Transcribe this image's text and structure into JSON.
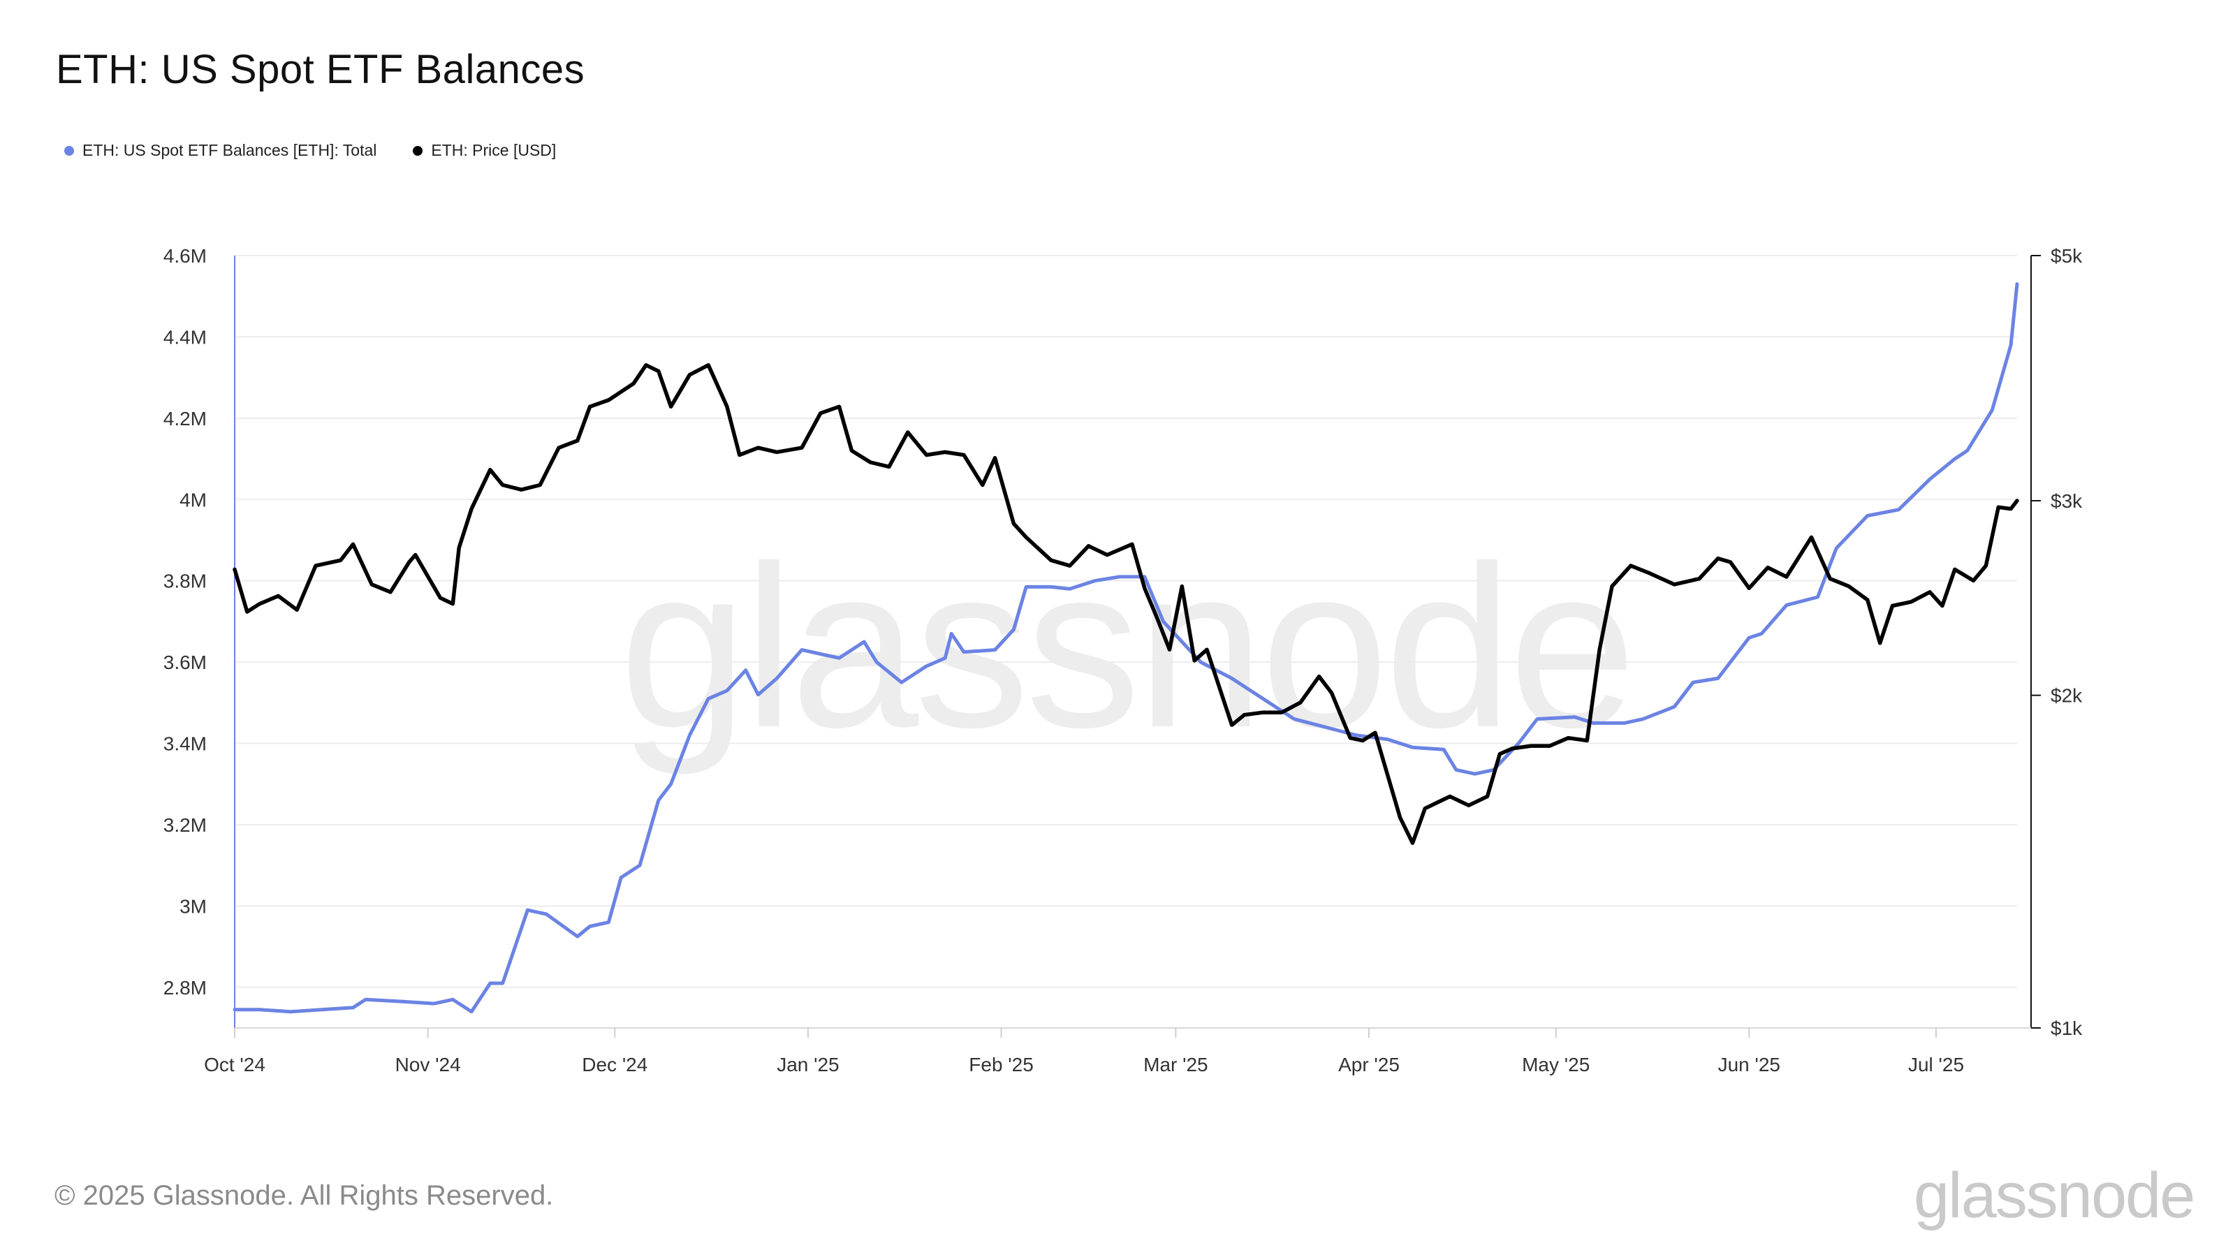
{
  "title": "ETH: US Spot ETF Balances",
  "legend": [
    {
      "label": "ETH: US Spot ETF Balances [ETH]: Total",
      "color": "#6b83e3"
    },
    {
      "label": "ETH: Price [USD]",
      "color": "#000000"
    }
  ],
  "watermark": "glassnode",
  "footer": "© 2025 Glassnode. All Rights Reserved.",
  "logo": "glassnode",
  "chart_data": {
    "type": "line",
    "title": "ETH: US Spot ETF Balances",
    "x_range": [
      "2024-10-01",
      "2025-07-14"
    ],
    "x_ticks": [
      {
        "date": "2024-10-01",
        "label": "Oct '24"
      },
      {
        "date": "2024-11-01",
        "label": "Nov '24"
      },
      {
        "date": "2024-12-01",
        "label": "Dec '24"
      },
      {
        "date": "2025-01-01",
        "label": "Jan '25"
      },
      {
        "date": "2025-02-01",
        "label": "Feb '25"
      },
      {
        "date": "2025-03-01",
        "label": "Mar '25"
      },
      {
        "date": "2025-04-01",
        "label": "Apr '25"
      },
      {
        "date": "2025-05-01",
        "label": "May '25"
      },
      {
        "date": "2025-06-01",
        "label": "Jun '25"
      },
      {
        "date": "2025-07-01",
        "label": "Jul '25"
      }
    ],
    "y_left": {
      "min": 2700000,
      "max": 4600000,
      "scale": "linear",
      "ticks": [
        {
          "value": 2800000,
          "label": "2.8M"
        },
        {
          "value": 3000000,
          "label": "3M"
        },
        {
          "value": 3200000,
          "label": "3.2M"
        },
        {
          "value": 3400000,
          "label": "3.4M"
        },
        {
          "value": 3600000,
          "label": "3.6M"
        },
        {
          "value": 3800000,
          "label": "3.8M"
        },
        {
          "value": 4000000,
          "label": "4M"
        },
        {
          "value": 4200000,
          "label": "4.2M"
        },
        {
          "value": 4400000,
          "label": "4.4M"
        },
        {
          "value": 4600000,
          "label": "4.6M"
        }
      ]
    },
    "y_right": {
      "min": 1000,
      "max": 5000,
      "scale": "log",
      "ticks": [
        {
          "value": 1000,
          "label": "$1k"
        },
        {
          "value": 2000,
          "label": "$2k"
        },
        {
          "value": 3000,
          "label": "$3k"
        },
        {
          "value": 5000,
          "label": "$5k"
        }
      ]
    },
    "grid": true,
    "legend_position": "top-left",
    "series": [
      {
        "name": "ETH: US Spot ETF Balances [ETH]: Total",
        "axis": "left",
        "color": "#6b83e3",
        "points": [
          [
            "2024-10-01",
            2745000
          ],
          [
            "2024-10-05",
            2745000
          ],
          [
            "2024-10-10",
            2740000
          ],
          [
            "2024-10-15",
            2745000
          ],
          [
            "2024-10-20",
            2750000
          ],
          [
            "2024-10-22",
            2770000
          ],
          [
            "2024-10-28",
            2765000
          ],
          [
            "2024-11-02",
            2760000
          ],
          [
            "2024-11-05",
            2770000
          ],
          [
            "2024-11-08",
            2740000
          ],
          [
            "2024-11-11",
            2810000
          ],
          [
            "2024-11-13",
            2810000
          ],
          [
            "2024-11-17",
            2990000
          ],
          [
            "2024-11-20",
            2980000
          ],
          [
            "2024-11-25",
            2925000
          ],
          [
            "2024-11-27",
            2950000
          ],
          [
            "2024-11-30",
            2960000
          ],
          [
            "2024-12-02",
            3070000
          ],
          [
            "2024-12-05",
            3100000
          ],
          [
            "2024-12-08",
            3260000
          ],
          [
            "2024-12-10",
            3300000
          ],
          [
            "2024-12-13",
            3420000
          ],
          [
            "2024-12-16",
            3510000
          ],
          [
            "2024-12-19",
            3530000
          ],
          [
            "2024-12-22",
            3580000
          ],
          [
            "2024-12-24",
            3520000
          ],
          [
            "2024-12-27",
            3560000
          ],
          [
            "2024-12-31",
            3630000
          ],
          [
            "2025-01-03",
            3620000
          ],
          [
            "2025-01-06",
            3610000
          ],
          [
            "2025-01-10",
            3650000
          ],
          [
            "2025-01-12",
            3600000
          ],
          [
            "2025-01-16",
            3550000
          ],
          [
            "2025-01-20",
            3590000
          ],
          [
            "2025-01-23",
            3610000
          ],
          [
            "2025-01-24",
            3670000
          ],
          [
            "2025-01-26",
            3625000
          ],
          [
            "2025-01-31",
            3630000
          ],
          [
            "2025-02-03",
            3680000
          ],
          [
            "2025-02-05",
            3785000
          ],
          [
            "2025-02-09",
            3785000
          ],
          [
            "2025-02-12",
            3780000
          ],
          [
            "2025-02-16",
            3800000
          ],
          [
            "2025-02-20",
            3810000
          ],
          [
            "2025-02-24",
            3810000
          ],
          [
            "2025-02-27",
            3700000
          ],
          [
            "2025-03-02",
            3650000
          ],
          [
            "2025-03-05",
            3600000
          ],
          [
            "2025-03-10",
            3560000
          ],
          [
            "2025-03-15",
            3510000
          ],
          [
            "2025-03-20",
            3460000
          ],
          [
            "2025-03-25",
            3440000
          ],
          [
            "2025-03-30",
            3420000
          ],
          [
            "2025-04-04",
            3410000
          ],
          [
            "2025-04-08",
            3390000
          ],
          [
            "2025-04-13",
            3385000
          ],
          [
            "2025-04-15",
            3335000
          ],
          [
            "2025-04-18",
            3325000
          ],
          [
            "2025-04-21",
            3335000
          ],
          [
            "2025-04-25",
            3400000
          ],
          [
            "2025-04-28",
            3460000
          ],
          [
            "2025-05-04",
            3465000
          ],
          [
            "2025-05-07",
            3450000
          ],
          [
            "2025-05-12",
            3450000
          ],
          [
            "2025-05-15",
            3460000
          ],
          [
            "2025-05-20",
            3490000
          ],
          [
            "2025-05-23",
            3550000
          ],
          [
            "2025-05-27",
            3560000
          ],
          [
            "2025-06-01",
            3660000
          ],
          [
            "2025-06-03",
            3670000
          ],
          [
            "2025-06-07",
            3740000
          ],
          [
            "2025-06-12",
            3760000
          ],
          [
            "2025-06-15",
            3880000
          ],
          [
            "2025-06-20",
            3960000
          ],
          [
            "2025-06-25",
            3975000
          ],
          [
            "2025-06-30",
            4050000
          ],
          [
            "2025-07-04",
            4100000
          ],
          [
            "2025-07-06",
            4120000
          ],
          [
            "2025-07-10",
            4220000
          ],
          [
            "2025-07-13",
            4380000
          ],
          [
            "2025-07-14",
            4530000
          ]
        ]
      },
      {
        "name": "ETH: Price [USD]",
        "axis": "right",
        "color": "#000000",
        "points": [
          [
            "2024-10-01",
            2600
          ],
          [
            "2024-10-03",
            2380
          ],
          [
            "2024-10-05",
            2420
          ],
          [
            "2024-10-08",
            2460
          ],
          [
            "2024-10-11",
            2390
          ],
          [
            "2024-10-14",
            2620
          ],
          [
            "2024-10-18",
            2650
          ],
          [
            "2024-10-20",
            2740
          ],
          [
            "2024-10-23",
            2520
          ],
          [
            "2024-10-26",
            2480
          ],
          [
            "2024-10-29",
            2640
          ],
          [
            "2024-10-30",
            2680
          ],
          [
            "2024-11-03",
            2450
          ],
          [
            "2024-11-05",
            2420
          ],
          [
            "2024-11-06",
            2720
          ],
          [
            "2024-11-08",
            2950
          ],
          [
            "2024-11-11",
            3200
          ],
          [
            "2024-11-13",
            3100
          ],
          [
            "2024-11-16",
            3070
          ],
          [
            "2024-11-19",
            3100
          ],
          [
            "2024-11-22",
            3350
          ],
          [
            "2024-11-25",
            3400
          ],
          [
            "2024-11-27",
            3650
          ],
          [
            "2024-11-30",
            3700
          ],
          [
            "2024-12-04",
            3830
          ],
          [
            "2024-12-06",
            3980
          ],
          [
            "2024-12-08",
            3930
          ],
          [
            "2024-12-10",
            3650
          ],
          [
            "2024-12-13",
            3900
          ],
          [
            "2024-12-16",
            3980
          ],
          [
            "2024-12-19",
            3650
          ],
          [
            "2024-12-21",
            3300
          ],
          [
            "2024-12-24",
            3350
          ],
          [
            "2024-12-27",
            3320
          ],
          [
            "2024-12-31",
            3350
          ],
          [
            "2025-01-03",
            3600
          ],
          [
            "2025-01-06",
            3650
          ],
          [
            "2025-01-08",
            3330
          ],
          [
            "2025-01-11",
            3250
          ],
          [
            "2025-01-14",
            3220
          ],
          [
            "2025-01-17",
            3460
          ],
          [
            "2025-01-20",
            3300
          ],
          [
            "2025-01-23",
            3320
          ],
          [
            "2025-01-26",
            3300
          ],
          [
            "2025-01-29",
            3100
          ],
          [
            "2025-01-31",
            3280
          ],
          [
            "2025-02-03",
            2860
          ],
          [
            "2025-02-05",
            2780
          ],
          [
            "2025-02-09",
            2650
          ],
          [
            "2025-02-12",
            2620
          ],
          [
            "2025-02-15",
            2730
          ],
          [
            "2025-02-18",
            2680
          ],
          [
            "2025-02-22",
            2740
          ],
          [
            "2025-02-24",
            2500
          ],
          [
            "2025-02-26",
            2350
          ],
          [
            "2025-02-28",
            2200
          ],
          [
            "2025-03-02",
            2510
          ],
          [
            "2025-03-04",
            2150
          ],
          [
            "2025-03-06",
            2200
          ],
          [
            "2025-03-10",
            1880
          ],
          [
            "2025-03-12",
            1920
          ],
          [
            "2025-03-15",
            1930
          ],
          [
            "2025-03-18",
            1930
          ],
          [
            "2025-03-21",
            1970
          ],
          [
            "2025-03-24",
            2080
          ],
          [
            "2025-03-26",
            2010
          ],
          [
            "2025-03-29",
            1830
          ],
          [
            "2025-03-31",
            1820
          ],
          [
            "2025-04-02",
            1850
          ],
          [
            "2025-04-06",
            1550
          ],
          [
            "2025-04-08",
            1470
          ],
          [
            "2025-04-10",
            1580
          ],
          [
            "2025-04-12",
            1600
          ],
          [
            "2025-04-14",
            1620
          ],
          [
            "2025-04-17",
            1590
          ],
          [
            "2025-04-20",
            1620
          ],
          [
            "2025-04-22",
            1770
          ],
          [
            "2025-04-24",
            1790
          ],
          [
            "2025-04-27",
            1800
          ],
          [
            "2025-04-30",
            1800
          ],
          [
            "2025-05-03",
            1830
          ],
          [
            "2025-05-06",
            1820
          ],
          [
            "2025-05-08",
            2200
          ],
          [
            "2025-05-10",
            2510
          ],
          [
            "2025-05-13",
            2620
          ],
          [
            "2025-05-16",
            2580
          ],
          [
            "2025-05-20",
            2520
          ],
          [
            "2025-05-24",
            2550
          ],
          [
            "2025-05-27",
            2660
          ],
          [
            "2025-05-29",
            2640
          ],
          [
            "2025-06-01",
            2500
          ],
          [
            "2025-06-04",
            2610
          ],
          [
            "2025-06-07",
            2560
          ],
          [
            "2025-06-11",
            2780
          ],
          [
            "2025-06-14",
            2550
          ],
          [
            "2025-06-17",
            2510
          ],
          [
            "2025-06-20",
            2440
          ],
          [
            "2025-06-22",
            2230
          ],
          [
            "2025-06-24",
            2410
          ],
          [
            "2025-06-27",
            2430
          ],
          [
            "2025-06-30",
            2480
          ],
          [
            "2025-07-02",
            2410
          ],
          [
            "2025-07-04",
            2600
          ],
          [
            "2025-07-07",
            2540
          ],
          [
            "2025-07-09",
            2620
          ],
          [
            "2025-07-11",
            2960
          ],
          [
            "2025-07-13",
            2950
          ],
          [
            "2025-07-14",
            3000
          ]
        ]
      }
    ]
  }
}
